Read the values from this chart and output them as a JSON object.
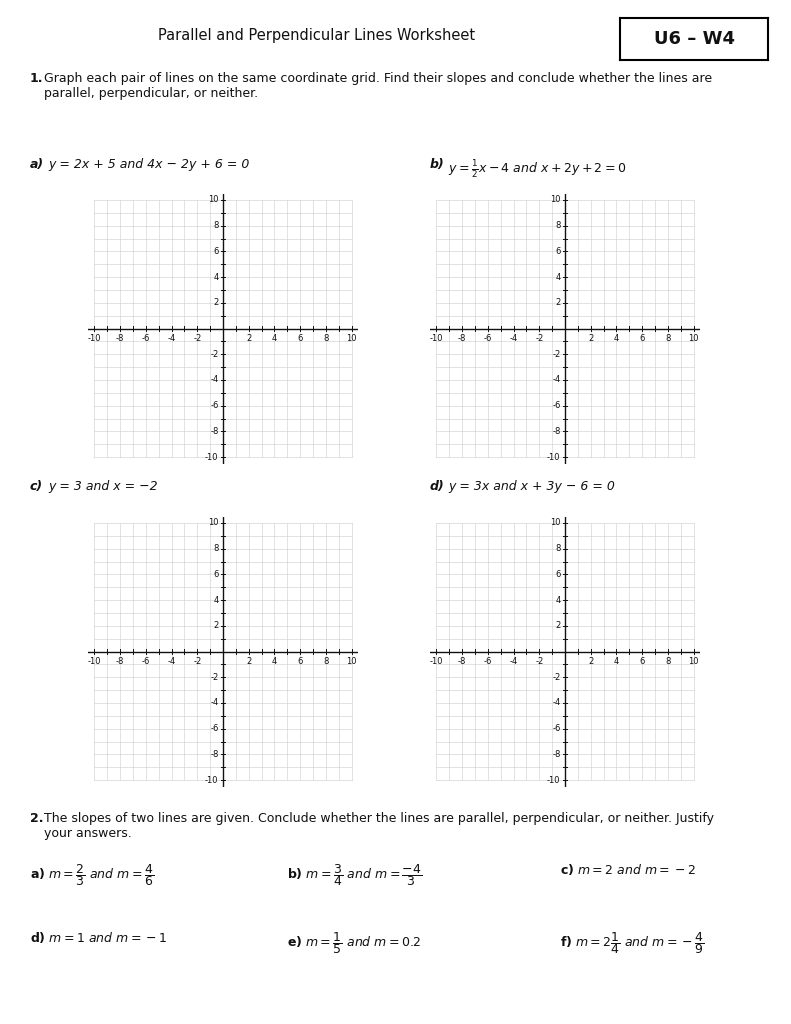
{
  "title": "Parallel and Perpendicular Lines Worksheet",
  "box_label": "U6 – W4",
  "q1_intro": "1.",
  "q1_bold": "Graph each pair of lines on the same coordinate grid. Find their slopes and conclude whether the lines are\nparallel, perpendicular, or neither.",
  "q2_intro": "2.",
  "q2_bold": "The slopes of two lines are given. Conclude whether the lines are parallel, perpendicular, or neither. Justify\nyour answers.",
  "label_a1": "a)",
  "formula_a1": " y = 2x + 5 and 4x − 2y + 6 = 0",
  "label_b1": "b)",
  "label_c1": "c)",
  "formula_c1": " y = 3 and x = −2",
  "label_d1": "d)",
  "formula_d1": " y = 3x and x + 3y − 6 = 0",
  "grid_color": "#cccccc",
  "axis_color": "#111111",
  "bg_color": "#ffffff",
  "text_color": "#111111",
  "figw": 7.91,
  "figh": 10.24,
  "dpi": 100
}
